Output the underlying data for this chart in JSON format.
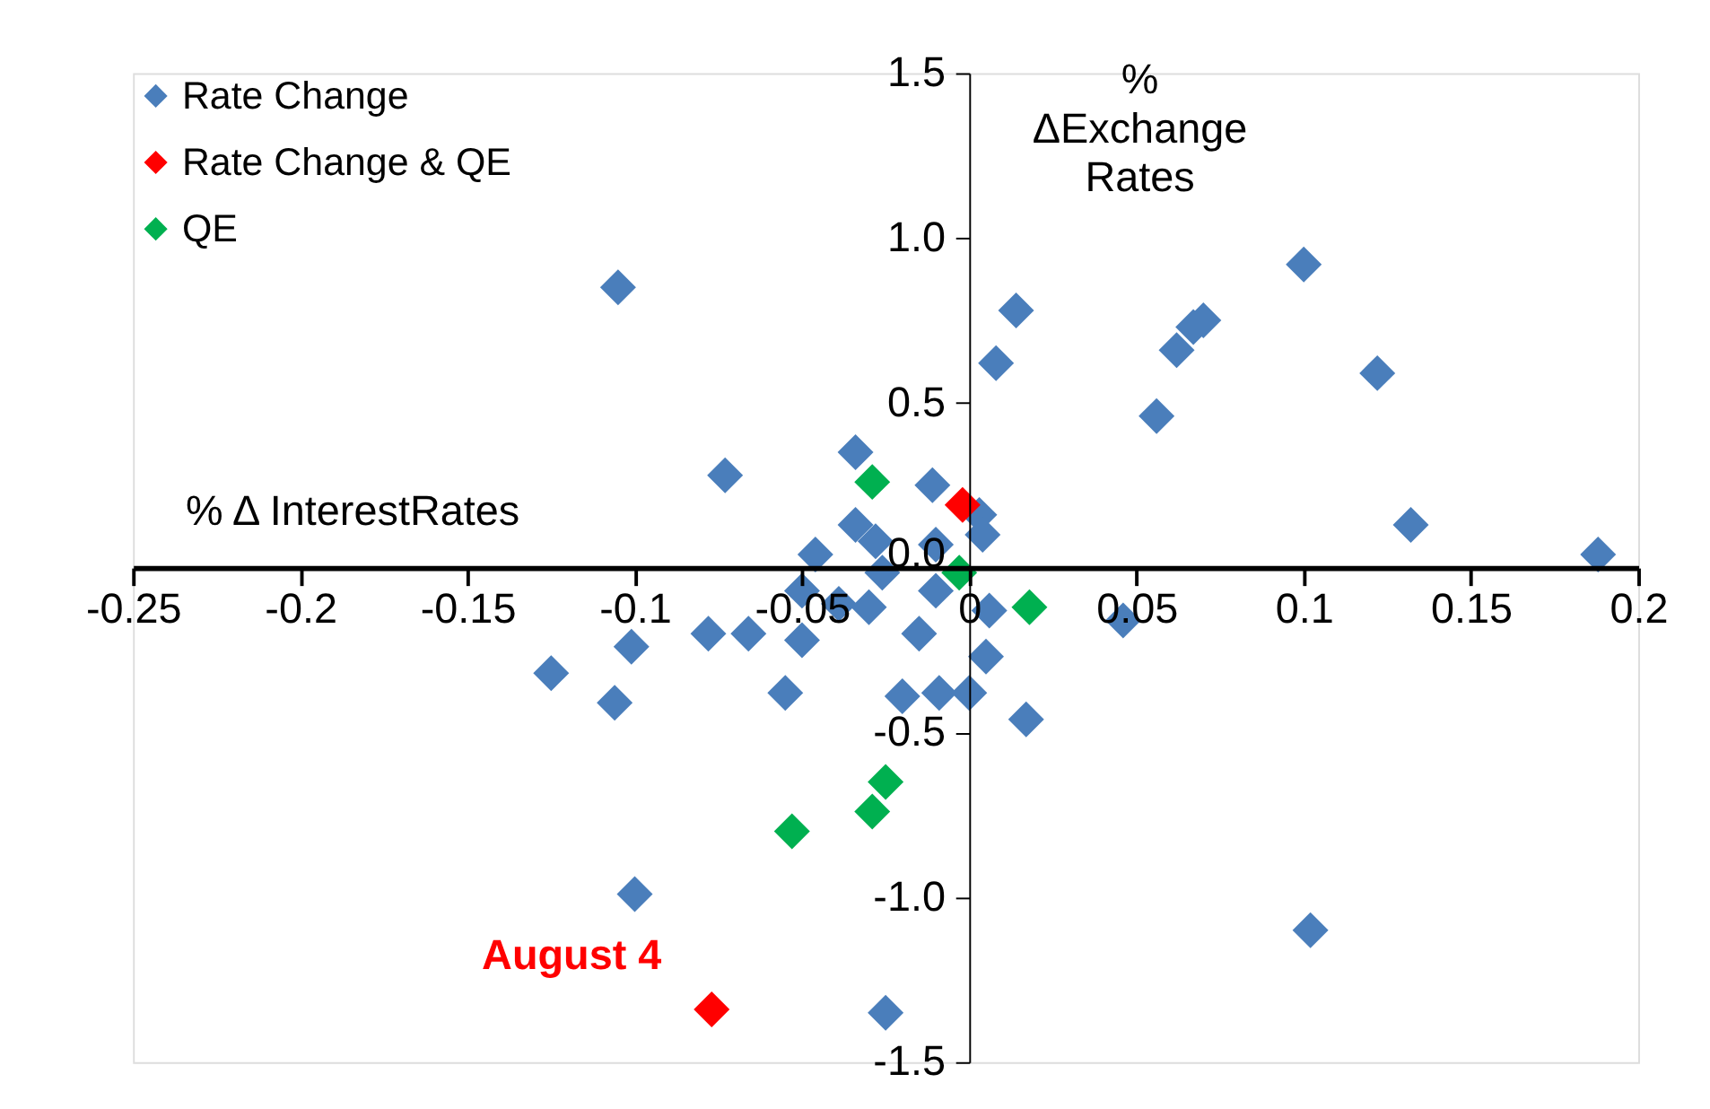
{
  "chart_data": {
    "type": "scatter",
    "xlabel": "% Δ InterestRates",
    "ylabel": "% ΔExchange Rates",
    "xlim": [
      -0.25,
      0.2
    ],
    "xticks": [
      -0.25,
      -0.2,
      -0.15,
      -0.1,
      -0.05,
      0,
      0.05,
      0.1,
      0.15,
      0.2
    ],
    "ylim": [
      -1.5,
      1.5
    ],
    "yticks": [
      {
        "value": -1.5,
        "label": "-1.5"
      },
      {
        "value": -1.0,
        "label": "-1.0"
      },
      {
        "value": -0.5,
        "label": "-0.5"
      },
      {
        "value": 0,
        "label": "0.0"
      },
      {
        "value": 0.5,
        "label": "0.5"
      },
      {
        "value": 1.0,
        "label": "1.0"
      },
      {
        "value": 1.5,
        "label": "1.5"
      }
    ],
    "marker": "diamond",
    "grid": false,
    "legend": "top left",
    "annotations": [
      {
        "text": "August 4",
        "x": -0.077,
        "y": -1.34
      }
    ],
    "series": [
      {
        "name": "Rate Change",
        "color": "#4a7ebb",
        "x": [
          -0.105,
          -0.073,
          -0.034,
          -0.011,
          0.003,
          0.004,
          -0.034,
          -0.028,
          -0.046,
          -0.01,
          -0.026,
          -0.01,
          -0.05,
          -0.03,
          -0.039,
          0.006,
          0.005,
          -0.015,
          -0.05,
          -0.066,
          -0.078,
          -0.101,
          -0.125,
          -0.106,
          -0.055,
          -0.02,
          -0.009,
          0.0,
          0.017,
          0.046,
          0.1,
          0.014,
          0.008,
          0.07,
          0.067,
          0.062,
          0.056,
          0.122,
          0.132,
          0.188,
          -0.1,
          -0.025,
          0.102
        ],
        "values": [
          0.85,
          0.28,
          0.35,
          0.25,
          0.16,
          0.1,
          0.13,
          0.08,
          0.04,
          0.07,
          -0.015,
          -0.07,
          -0.07,
          -0.12,
          -0.11,
          -0.13,
          -0.27,
          -0.2,
          -0.22,
          -0.2,
          -0.2,
          -0.24,
          -0.32,
          -0.41,
          -0.38,
          -0.39,
          -0.38,
          -0.38,
          -0.46,
          -0.16,
          0.92,
          0.78,
          0.62,
          0.75,
          0.73,
          0.66,
          0.46,
          0.59,
          0.13,
          0.04,
          -0.99,
          -1.35,
          -1.1
        ]
      },
      {
        "name": "Rate Change & QE",
        "color": "#ff0000",
        "x": [
          -0.002,
          -0.077
        ],
        "values": [
          0.19,
          -1.34
        ]
      },
      {
        "name": "QE",
        "color": "#00b050",
        "x": [
          -0.029,
          -0.003,
          0.018,
          -0.053,
          -0.029,
          -0.025
        ],
        "values": [
          0.26,
          -0.015,
          -0.12,
          -0.8,
          -0.74,
          -0.65
        ]
      }
    ]
  }
}
